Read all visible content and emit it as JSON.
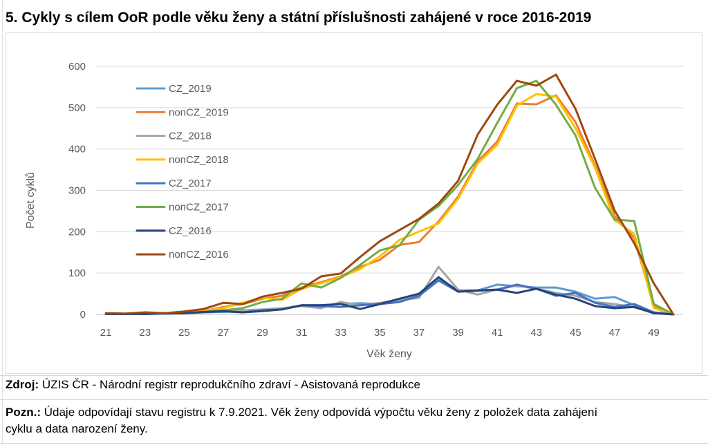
{
  "page": {
    "title": "5. Cykly s cílem OoR podle věku ženy a státní příslušnosti zahájené v roce 2016-2019",
    "source_label": "Zdroj:",
    "source_text": "ÚZIS ČR - Národní registr reprodukčního zdraví - Asistovaná reprodukce",
    "note_label": "Pozn.:",
    "note_line1": "Údaje odpovídají stavu registru k 7.9.2021. Věk ženy odpovídá výpočtu věku ženy z položek data zahájení",
    "note_line2": "cyklu a data narození ženy."
  },
  "chart_data": {
    "type": "line",
    "title": "",
    "xlabel": "Věk ženy",
    "ylabel": "Počet cyklů",
    "categories": [
      21,
      22,
      23,
      24,
      25,
      26,
      27,
      28,
      29,
      30,
      31,
      32,
      33,
      34,
      35,
      36,
      37,
      38,
      39,
      40,
      41,
      42,
      43,
      44,
      45,
      46,
      47,
      48,
      49,
      50
    ],
    "xtick_labels": [
      "21",
      "23",
      "25",
      "27",
      "29",
      "31",
      "33",
      "35",
      "37",
      "39",
      "41",
      "43",
      "45",
      "47",
      "49"
    ],
    "ylim": [
      0,
      600
    ],
    "yticks": [
      "0",
      "100",
      "200",
      "300",
      "400",
      "500",
      "600"
    ],
    "grid": "horizontal",
    "legend_position": "left",
    "series": [
      {
        "name": "CZ_2019",
        "color": "#5B9BD5",
        "values": [
          1,
          1,
          2,
          2,
          3,
          5,
          6,
          8,
          10,
          14,
          22,
          22,
          25,
          27,
          25,
          32,
          45,
          88,
          58,
          58,
          72,
          68,
          65,
          65,
          55,
          38,
          42,
          22,
          5,
          0
        ]
      },
      {
        "name": "nonCZ_2019",
        "color": "#ED7D31",
        "values": [
          2,
          1,
          3,
          3,
          5,
          8,
          18,
          25,
          38,
          45,
          65,
          78,
          92,
          115,
          132,
          168,
          175,
          225,
          285,
          370,
          418,
          510,
          508,
          530,
          465,
          360,
          238,
          185,
          20,
          0
        ]
      },
      {
        "name": "CZ_2018",
        "color": "#A5A5A5",
        "values": [
          1,
          1,
          2,
          2,
          3,
          6,
          8,
          10,
          12,
          15,
          20,
          15,
          30,
          22,
          28,
          35,
          40,
          115,
          60,
          48,
          60,
          70,
          62,
          52,
          45,
          30,
          25,
          17,
          4,
          0
        ]
      },
      {
        "name": "nonCZ_2018",
        "color": "#FFC000",
        "values": [
          2,
          1,
          4,
          3,
          5,
          8,
          15,
          28,
          40,
          35,
          62,
          75,
          90,
          110,
          140,
          180,
          200,
          220,
          280,
          365,
          410,
          505,
          533,
          527,
          450,
          355,
          228,
          195,
          15,
          0
        ]
      },
      {
        "name": "CZ_2017",
        "color": "#4472C4",
        "values": [
          1,
          1,
          1,
          2,
          3,
          5,
          7,
          5,
          10,
          12,
          22,
          20,
          18,
          22,
          25,
          30,
          45,
          82,
          55,
          57,
          60,
          72,
          62,
          45,
          52,
          28,
          18,
          25,
          5,
          0
        ]
      },
      {
        "name": "nonCZ_2017",
        "color": "#70AD47",
        "values": [
          2,
          1,
          2,
          2,
          3,
          6,
          10,
          15,
          30,
          38,
          75,
          65,
          88,
          120,
          155,
          167,
          229,
          262,
          313,
          376,
          463,
          547,
          565,
          507,
          433,
          306,
          229,
          226,
          25,
          0
        ]
      },
      {
        "name": "CZ_2016",
        "color": "#264478",
        "values": [
          1,
          1,
          1,
          2,
          3,
          6,
          8,
          5,
          8,
          12,
          22,
          22,
          25,
          13,
          25,
          38,
          50,
          90,
          55,
          58,
          60,
          52,
          62,
          48,
          38,
          20,
          15,
          18,
          3,
          0
        ]
      },
      {
        "name": "nonCZ_2016",
        "color": "#9E480E",
        "values": [
          3,
          2,
          5,
          3,
          7,
          13,
          28,
          25,
          43,
          52,
          62,
          92,
          99,
          139,
          177,
          204,
          231,
          268,
          323,
          435,
          507,
          565,
          553,
          580,
          497,
          376,
          251,
          172,
          75,
          0
        ]
      }
    ]
  }
}
